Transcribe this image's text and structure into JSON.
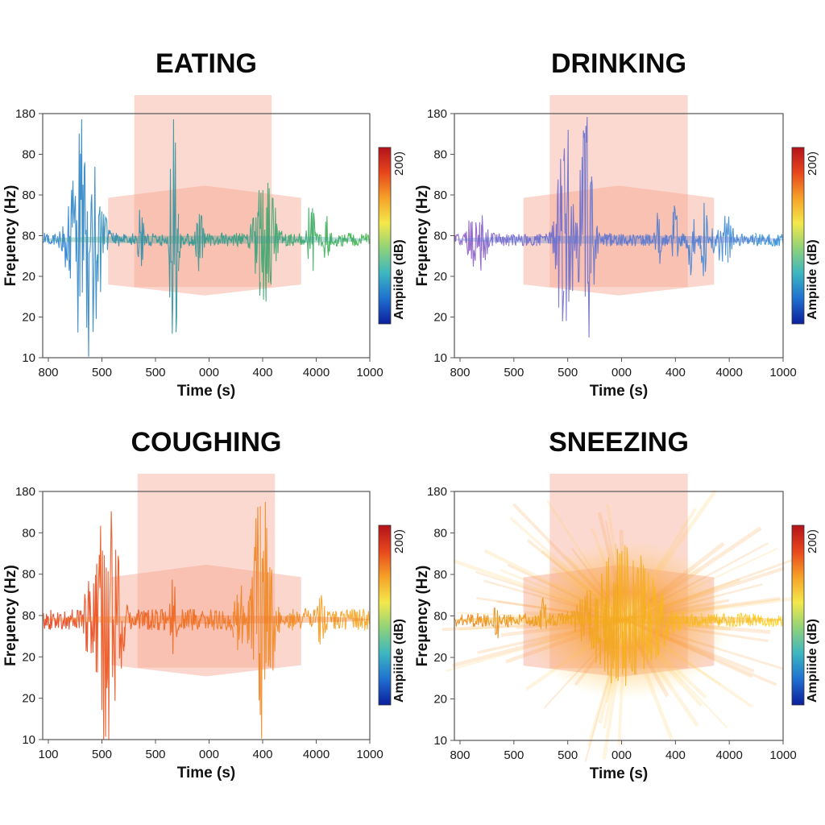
{
  "chart_data": [
    {
      "type": "line",
      "title": "EATING",
      "xlabel": "Time (s)",
      "ylabel": "Freμency (Hz)",
      "x_tick_labels": [
        "800",
        "500",
        "500",
        "000",
        "400",
        "4000",
        "1000"
      ],
      "y_tick_labels": [
        "180",
        "80",
        "80",
        "80",
        "20",
        "20",
        "10"
      ],
      "colorbar": {
        "label": "Ampiide (dB)",
        "max_label": "200)",
        "colormap": "jet"
      },
      "baseline_tick_index": 3,
      "signal_color_range": [
        "#2b7fd0",
        "#3fb54a"
      ],
      "bursts": [
        {
          "x_frac": 0.13,
          "width_frac": 0.05,
          "amp": 0.95
        },
        {
          "x_frac": 0.3,
          "width_frac": 0.012,
          "amp": 0.25
        },
        {
          "x_frac": 0.4,
          "width_frac": 0.014,
          "amp": 0.98
        },
        {
          "x_frac": 0.48,
          "width_frac": 0.012,
          "amp": 0.35
        },
        {
          "x_frac": 0.68,
          "width_frac": 0.035,
          "amp": 0.55
        },
        {
          "x_frac": 0.82,
          "width_frac": 0.014,
          "amp": 0.32
        },
        {
          "x_frac": 0.87,
          "width_frac": 0.01,
          "amp": 0.3
        }
      ],
      "noise_level": 0.05,
      "highlight_window": {
        "x_start_frac": 0.28,
        "x_end_frac": 0.7
      },
      "highlight_band": {
        "x_start_frac": 0.2,
        "x_end_frac": 0.79
      }
    },
    {
      "type": "line",
      "title": "DRINKING",
      "xlabel": "Time (s)",
      "ylabel": "Freμency (Hz)",
      "x_tick_labels": [
        "800",
        "500",
        "500",
        "000",
        "400",
        "4000",
        "1000"
      ],
      "y_tick_labels": [
        "180",
        "80",
        "80",
        "80",
        "20",
        "20",
        "10"
      ],
      "colorbar": {
        "label": "Ampiide (dB)",
        "max_label": "200)",
        "colormap": "jet"
      },
      "baseline_tick_index": 3,
      "signal_color_range": [
        "#8b5cc8",
        "#2f8fd6"
      ],
      "bursts": [
        {
          "x_frac": 0.07,
          "width_frac": 0.03,
          "amp": 0.3
        },
        {
          "x_frac": 0.34,
          "width_frac": 0.03,
          "amp": 0.9
        },
        {
          "x_frac": 0.4,
          "width_frac": 0.025,
          "amp": 0.96
        },
        {
          "x_frac": 0.62,
          "width_frac": 0.01,
          "amp": 0.25
        },
        {
          "x_frac": 0.67,
          "width_frac": 0.01,
          "amp": 0.3
        },
        {
          "x_frac": 0.72,
          "width_frac": 0.012,
          "amp": 0.3
        },
        {
          "x_frac": 0.76,
          "width_frac": 0.012,
          "amp": 0.3
        },
        {
          "x_frac": 0.82,
          "width_frac": 0.04,
          "amp": 0.2
        }
      ],
      "noise_level": 0.05,
      "highlight_window": {
        "x_start_frac": 0.29,
        "x_end_frac": 0.71
      },
      "highlight_band": {
        "x_start_frac": 0.21,
        "x_end_frac": 0.79
      }
    },
    {
      "type": "line",
      "title": "COUGHING",
      "xlabel": "Time (s)",
      "ylabel": "Freμency (Hz)",
      "x_tick_labels": [
        "100",
        "500",
        "500",
        "000",
        "400",
        "4000",
        "1000"
      ],
      "y_tick_labels": [
        "180",
        "80",
        "80",
        "80",
        "20",
        "20",
        "10"
      ],
      "colorbar": {
        "label": "Ampiiide (dB)",
        "max_label": "200)",
        "colormap": "jet"
      },
      "baseline_tick_index": 3,
      "signal_color_range": [
        "#e8401c",
        "#f5a623"
      ],
      "bursts": [
        {
          "x_frac": 0.14,
          "width_frac": 0.015,
          "amp": 0.35
        },
        {
          "x_frac": 0.2,
          "width_frac": 0.04,
          "amp": 1.0
        },
        {
          "x_frac": 0.4,
          "width_frac": 0.01,
          "amp": 0.45
        },
        {
          "x_frac": 0.6,
          "width_frac": 0.02,
          "amp": 0.3
        },
        {
          "x_frac": 0.67,
          "width_frac": 0.035,
          "amp": 0.98
        },
        {
          "x_frac": 0.85,
          "width_frac": 0.014,
          "amp": 0.25
        }
      ],
      "noise_level": 0.08,
      "highlight_window": {
        "x_start_frac": 0.29,
        "x_end_frac": 0.71
      },
      "highlight_band": {
        "x_start_frac": 0.21,
        "x_end_frac": 0.79
      }
    },
    {
      "type": "line",
      "title": "SNEEZING",
      "xlabel": "Time (s)",
      "ylabel": "Freμency (Hz)",
      "x_tick_labels": [
        "800",
        "500",
        "500",
        "000",
        "400",
        "4000",
        "1000"
      ],
      "y_tick_labels": [
        "180",
        "80",
        "80",
        "80",
        "20",
        "20",
        "10"
      ],
      "colorbar": {
        "label": "Ampiiide (dB)",
        "max_label": "200)",
        "colormap": "jet"
      },
      "baseline_tick_index": 3,
      "signal_color_range": [
        "#e8861c",
        "#ffd21f"
      ],
      "bursts": [
        {
          "x_frac": 0.13,
          "width_frac": 0.012,
          "amp": 0.15
        },
        {
          "x_frac": 0.27,
          "width_frac": 0.01,
          "amp": 0.2
        },
        {
          "x_frac": 0.52,
          "width_frac": 0.12,
          "amp": 0.55
        }
      ],
      "noise_level": 0.05,
      "starburst": true,
      "highlight_window": {
        "x_start_frac": 0.29,
        "x_end_frac": 0.71
      },
      "highlight_band": {
        "x_start_frac": 0.21,
        "x_end_frac": 0.79
      }
    }
  ],
  "highlight_color": "#f7a58f",
  "colormap_stops": [
    "#0b1f9c",
    "#1f6fd0",
    "#3cb6c0",
    "#8fd27a",
    "#f4e84a",
    "#f6a128",
    "#e8461c",
    "#b3121b"
  ]
}
